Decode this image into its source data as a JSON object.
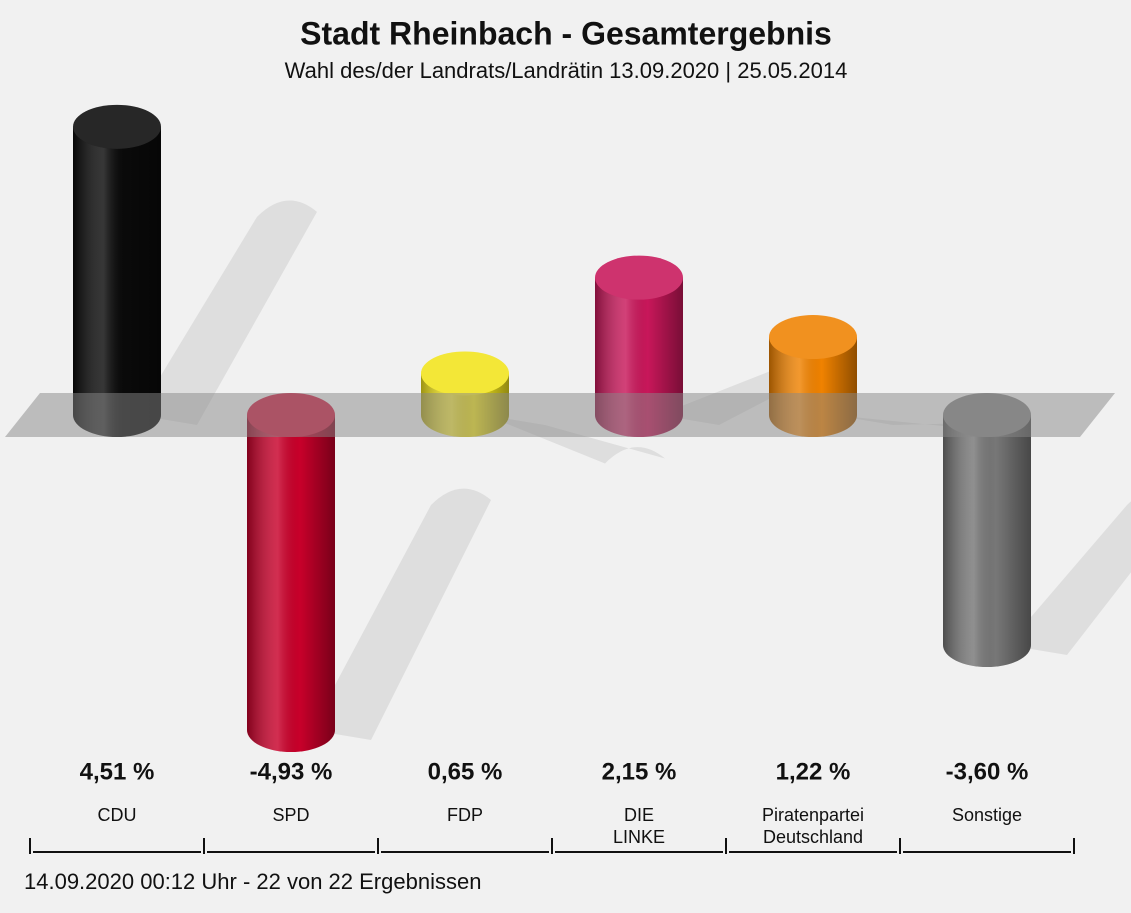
{
  "chart_data": {
    "type": "bar",
    "title": "Stadt Rheinbach - Gesamtergebnis",
    "subtitle": "Wahl des/der Landrats/Landrätin 13.09.2020  | 25.05.2014",
    "categories": [
      "CDU",
      "SPD",
      "FDP",
      "DIE LINKE",
      "Piratenpartei Deutschland",
      "Sonstige"
    ],
    "values": [
      4.51,
      -4.93,
      0.65,
      2.15,
      1.22,
      -3.6
    ],
    "value_labels": [
      "4,51 %",
      "-4,93 %",
      "0,65 %",
      "2,15 %",
      "1,22 %",
      "-3,60 %"
    ],
    "colors": [
      "#0a0a0a",
      "#c8002a",
      "#f2e41c",
      "#c8175a",
      "#f08200",
      "#777777"
    ],
    "footer": "14.09.2020 00:12 Uhr - 22 von 22 Ergebnissen"
  }
}
